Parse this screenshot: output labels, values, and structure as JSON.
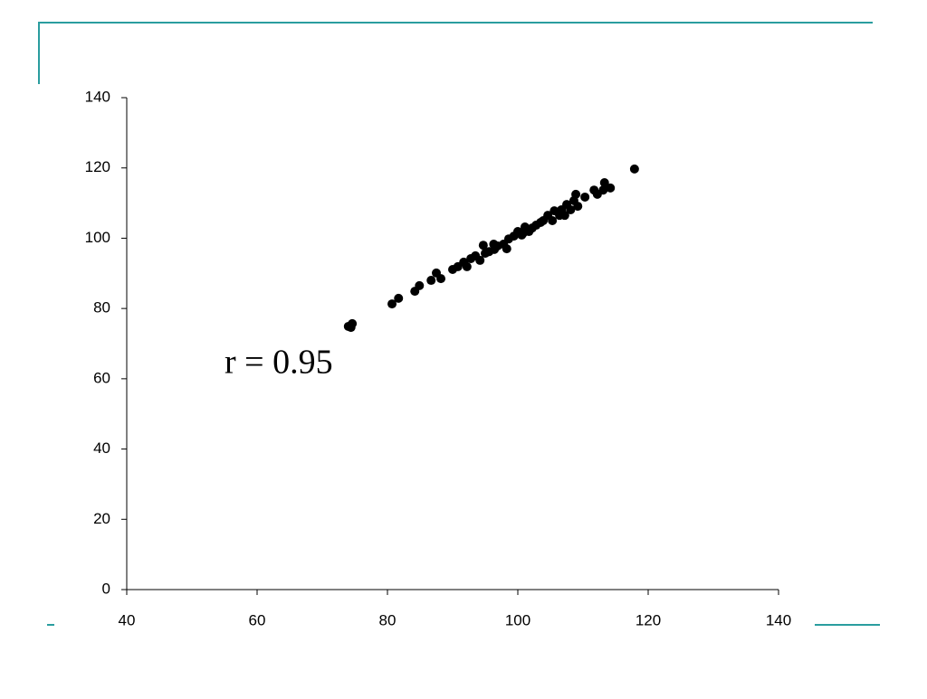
{
  "chart_data": {
    "type": "scatter",
    "color": "#000000",
    "annotation": "r = 0.95",
    "x": [
      74.0,
      74.6,
      74.4,
      80.7,
      81.7,
      84.2,
      84.9,
      86.7,
      87.5,
      88.2,
      90.0,
      90.8,
      91.7,
      92.2,
      92.8,
      93.5,
      94.2,
      94.7,
      95.0,
      95.6,
      96.4,
      96.3,
      96.9,
      97.8,
      98.3,
      98.6,
      99.4,
      100.0,
      100.6,
      100.8,
      101.1,
      101.7,
      102.2,
      102.8,
      103.5,
      103.9,
      104.6,
      105.3,
      105.6,
      106.4,
      106.7,
      107.2,
      107.5,
      108.1,
      108.6,
      108.9,
      109.2,
      110.3,
      111.7,
      112.2,
      113.1,
      113.3,
      114.2,
      117.9
    ],
    "values": [
      74.9,
      75.7,
      74.6,
      81.3,
      82.9,
      84.9,
      86.5,
      88.0,
      90.1,
      88.5,
      91.1,
      91.9,
      93.2,
      91.9,
      94.2,
      95.0,
      93.7,
      98.0,
      95.7,
      96.2,
      96.8,
      98.3,
      97.8,
      98.3,
      97.0,
      99.8,
      100.6,
      101.9,
      100.9,
      101.4,
      103.2,
      101.9,
      102.9,
      103.7,
      104.5,
      105.0,
      106.5,
      105.0,
      107.8,
      106.5,
      108.1,
      106.5,
      109.6,
      108.1,
      110.7,
      112.5,
      109.1,
      111.7,
      113.7,
      112.5,
      113.7,
      115.8,
      114.3,
      119.7
    ],
    "xlim": [
      40,
      140
    ],
    "xticks": [
      40,
      60,
      80,
      100,
      120,
      140
    ],
    "ylim": [
      0,
      140
    ],
    "yticks": [
      0,
      20,
      40,
      60,
      80,
      100,
      120,
      140
    ]
  }
}
